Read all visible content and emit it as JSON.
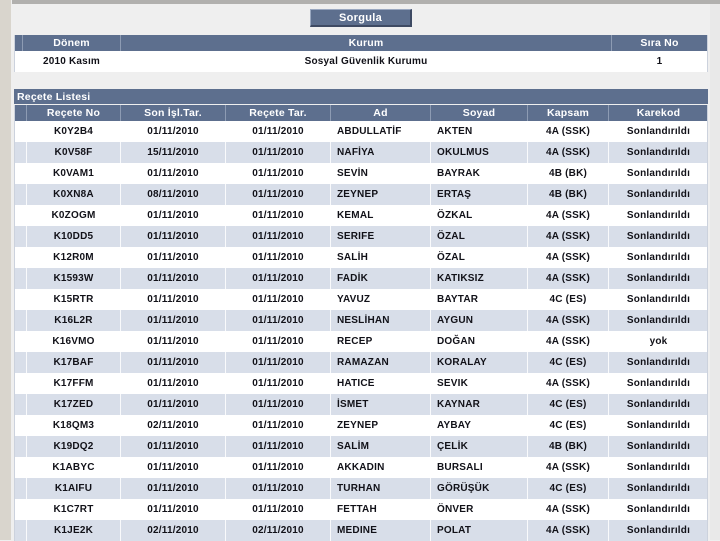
{
  "colors": {
    "header_slate": "#5d6f8e",
    "row_alt": "#d8dee9",
    "row_white": "#ffffff",
    "header_text": "#ffffff",
    "data_text": "#111118"
  },
  "toolbar": {
    "query_button_label": "Sorgula"
  },
  "period_table": {
    "columns": [
      "Dönem",
      "Kurum",
      "Sıra No"
    ],
    "row": {
      "donem": "2010 Kasım",
      "kurum": "Sosyal Güvenlik Kurumu",
      "sira_no": "1"
    }
  },
  "section": {
    "title": "Reçete Listesi"
  },
  "table": {
    "columns": [
      "Reçete No",
      "Son İşl.Tar.",
      "Reçete Tar.",
      "Ad",
      "Soyad",
      "Kapsam",
      "Karekod"
    ],
    "rows": [
      [
        "K0Y2B4",
        "01/11/2010",
        "01/11/2010",
        "ABDULLATİF",
        "AKTEN",
        "4A (SSK)",
        "Sonlandırıldı"
      ],
      [
        "K0V58F",
        "15/11/2010",
        "01/11/2010",
        "NAFİYA",
        "OKULMUS",
        "4A (SSK)",
        "Sonlandırıldı"
      ],
      [
        "K0VAM1",
        "01/11/2010",
        "01/11/2010",
        "SEVİN",
        "BAYRAK",
        "4B (BK)",
        "Sonlandırıldı"
      ],
      [
        "K0XN8A",
        "08/11/2010",
        "01/11/2010",
        "ZEYNEP",
        "ERTAŞ",
        "4B (BK)",
        "Sonlandırıldı"
      ],
      [
        "K0ZOGM",
        "01/11/2010",
        "01/11/2010",
        "KEMAL",
        "ÖZKAL",
        "4A (SSK)",
        "Sonlandırıldı"
      ],
      [
        "K10DD5",
        "01/11/2010",
        "01/11/2010",
        "SERIFE",
        "ÖZAL",
        "4A (SSK)",
        "Sonlandırıldı"
      ],
      [
        "K12R0M",
        "01/11/2010",
        "01/11/2010",
        "SALİH",
        "ÖZAL",
        "4A (SSK)",
        "Sonlandırıldı"
      ],
      [
        "K1593W",
        "01/11/2010",
        "01/11/2010",
        "FADİK",
        "KATIKSIZ",
        "4A (SSK)",
        "Sonlandırıldı"
      ],
      [
        "K15RTR",
        "01/11/2010",
        "01/11/2010",
        "YAVUZ",
        "BAYTAR",
        "4C (ES)",
        "Sonlandırıldı"
      ],
      [
        "K16L2R",
        "01/11/2010",
        "01/11/2010",
        "NESLİHAN",
        "AYGUN",
        "4A (SSK)",
        "Sonlandırıldı"
      ],
      [
        "K16VMO",
        "01/11/2010",
        "01/11/2010",
        "RECEP",
        "DOĞAN",
        "4A (SSK)",
        "yok"
      ],
      [
        "K17BAF",
        "01/11/2010",
        "01/11/2010",
        "RAMAZAN",
        "KORALAY",
        "4C (ES)",
        "Sonlandırıldı"
      ],
      [
        "K17FFM",
        "01/11/2010",
        "01/11/2010",
        "HATICE",
        "SEVIK",
        "4A (SSK)",
        "Sonlandırıldı"
      ],
      [
        "K17ZED",
        "01/11/2010",
        "01/11/2010",
        "İSMET",
        "KAYNAR",
        "4C (ES)",
        "Sonlandırıldı"
      ],
      [
        "K18QM3",
        "02/11/2010",
        "01/11/2010",
        "ZEYNEP",
        "AYBAY",
        "4C (ES)",
        "Sonlandırıldı"
      ],
      [
        "K19DQ2",
        "01/11/2010",
        "01/11/2010",
        "SALİM",
        "ÇELİK",
        "4B (BK)",
        "Sonlandırıldı"
      ],
      [
        "K1ABYC",
        "01/11/2010",
        "01/11/2010",
        "AKKADIN",
        "BURSALI",
        "4A (SSK)",
        "Sonlandırıldı"
      ],
      [
        "K1AIFU",
        "01/11/2010",
        "01/11/2010",
        "TURHAN",
        "GÖRÜŞÜK",
        "4C (ES)",
        "Sonlandırıldı"
      ],
      [
        "K1C7RT",
        "01/11/2010",
        "01/11/2010",
        "FETTAH",
        "ÖNVER",
        "4A (SSK)",
        "Sonlandırıldı"
      ],
      [
        "K1JE2K",
        "02/11/2010",
        "02/11/2010",
        "MEDINE",
        "POLAT",
        "4A (SSK)",
        "Sonlandırıldı"
      ]
    ]
  }
}
